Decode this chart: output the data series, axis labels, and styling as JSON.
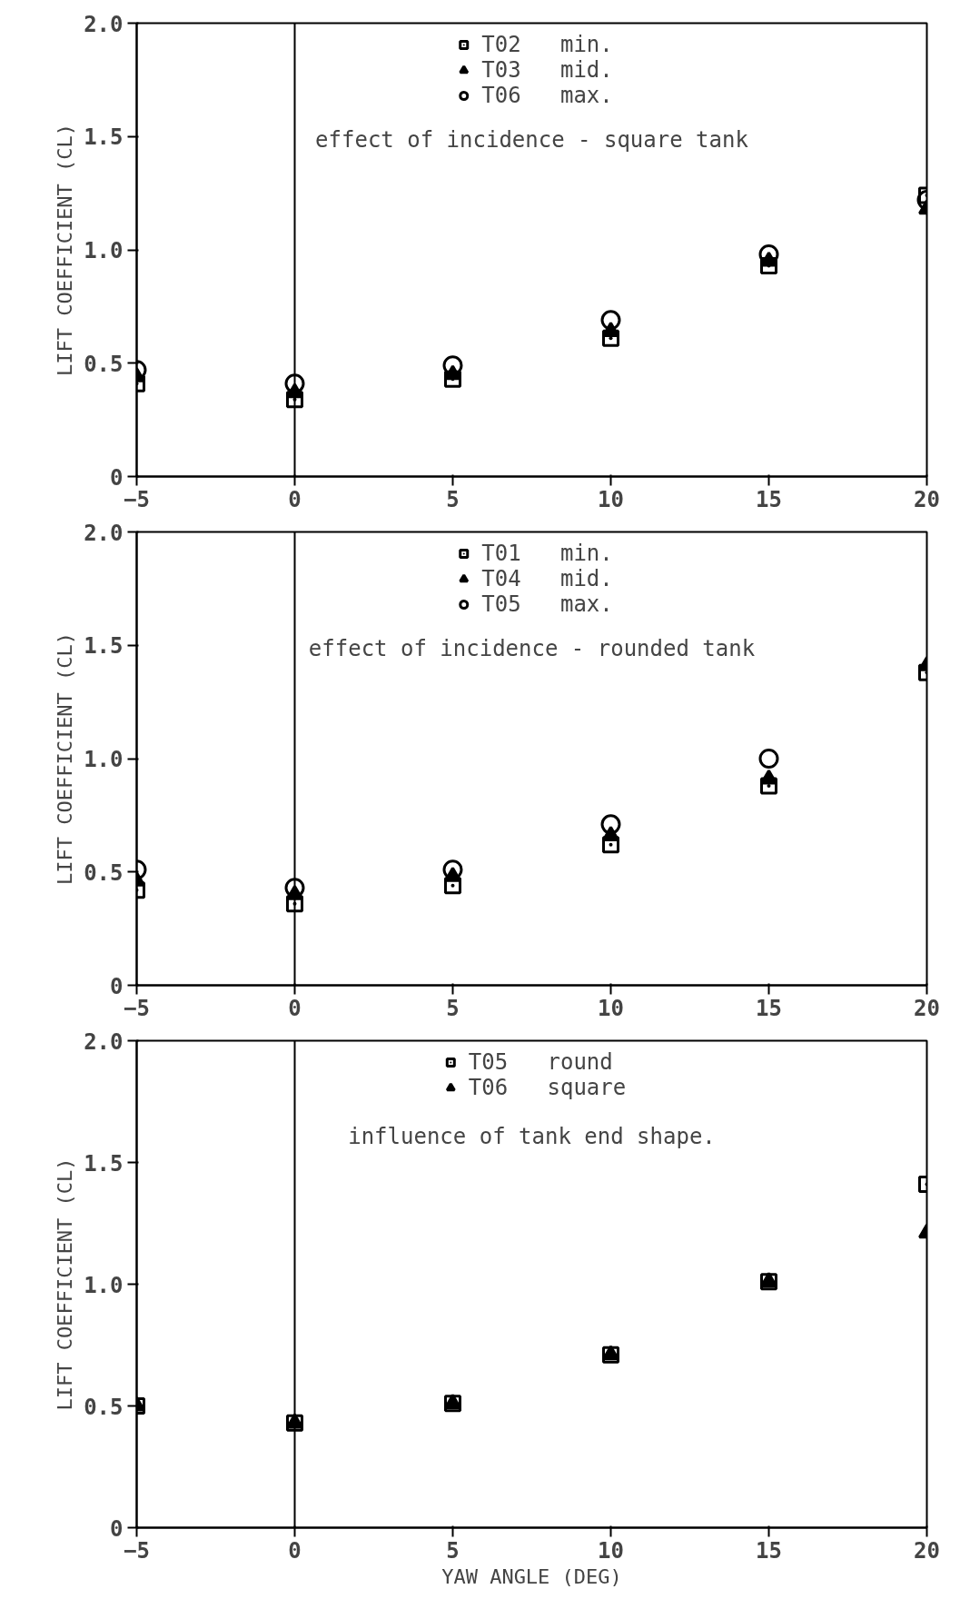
{
  "chart_data": [
    {
      "type": "scatter",
      "x": [
        -5,
        0,
        5,
        10,
        15,
        20
      ],
      "xlim": [
        -5,
        20
      ],
      "xticks": [
        -5,
        0,
        5,
        10,
        15,
        20
      ],
      "ylim": [
        0,
        2.0
      ],
      "yticks": [
        {
          "value": 0,
          "label": "0"
        },
        {
          "value": 0.5,
          "label": "0.5"
        },
        {
          "value": 1.0,
          "label": "1.0"
        },
        {
          "value": 1.5,
          "label": "1.5"
        },
        {
          "value": 2.0,
          "label": "2.0"
        }
      ],
      "ylabel": "LIFT COEFFICIENT (CL)",
      "grid": false,
      "legend": "top",
      "annotations": [
        "effect of incidence - square tank"
      ],
      "ref_lines": [
        {
          "axis": "x",
          "value": 0,
          "label": null
        }
      ],
      "series": [
        {
          "name": "T02   min.",
          "color": "#000000",
          "marker": "square",
          "values": [
            0.41,
            0.34,
            0.43,
            0.61,
            0.93,
            1.24
          ]
        },
        {
          "name": "T03   mid.",
          "color": "#000000",
          "marker": "triangle",
          "values": [
            0.44,
            0.37,
            0.45,
            0.64,
            0.95,
            1.18
          ]
        },
        {
          "name": "T06   max.",
          "color": "#000000",
          "marker": "circle",
          "values": [
            0.47,
            0.41,
            0.49,
            0.69,
            0.98,
            1.22
          ]
        }
      ]
    },
    {
      "type": "scatter",
      "x": [
        -5,
        0,
        5,
        10,
        15,
        20
      ],
      "xlim": [
        -5,
        20
      ],
      "xticks": [
        -5,
        0,
        5,
        10,
        15,
        20
      ],
      "ylim": [
        0,
        2.0
      ],
      "yticks": [
        {
          "value": 0,
          "label": "0"
        },
        {
          "value": 0.5,
          "label": "0.5"
        },
        {
          "value": 1.0,
          "label": "1.0"
        },
        {
          "value": 1.5,
          "label": "1.5"
        },
        {
          "value": 2.0,
          "label": "2.0"
        }
      ],
      "ylabel": "LIFT COEFFICIENT (CL)",
      "grid": false,
      "legend": "top",
      "annotations": [
        "effect of incidence - rounded tank"
      ],
      "ref_lines": [
        {
          "axis": "x",
          "value": 0,
          "label": null
        }
      ],
      "series": [
        {
          "name": "T01   min.",
          "color": "#000000",
          "marker": "square",
          "values": [
            0.42,
            0.36,
            0.44,
            0.62,
            0.88,
            1.38
          ]
        },
        {
          "name": "T04   mid.",
          "color": "#000000",
          "marker": "triangle",
          "values": [
            0.46,
            0.4,
            0.48,
            0.66,
            0.91,
            1.41
          ]
        },
        {
          "name": "T05   max.",
          "color": "#000000",
          "marker": "circle",
          "values": [
            0.51,
            0.43,
            0.51,
            0.71,
            1.0,
            null
          ]
        }
      ]
    },
    {
      "type": "scatter",
      "x": [
        -5,
        0,
        5,
        10,
        15,
        20
      ],
      "xlim": [
        -5,
        20
      ],
      "xticks": [
        -5,
        0,
        5,
        10,
        15,
        20
      ],
      "ylim": [
        0,
        2.0
      ],
      "yticks": [
        {
          "value": 0,
          "label": "0"
        },
        {
          "value": 0.5,
          "label": "0.5"
        },
        {
          "value": 1.0,
          "label": "1.0"
        },
        {
          "value": 1.5,
          "label": "1.5"
        },
        {
          "value": 2.0,
          "label": "2.0"
        }
      ],
      "ylabel": "LIFT COEFFICIENT (CL)",
      "xlabel": "YAW ANGLE (DEG)",
      "grid": false,
      "legend": "top",
      "annotations": [
        "influence of tank end shape."
      ],
      "ref_lines": [
        {
          "axis": "x",
          "value": 0,
          "label": null
        }
      ],
      "series": [
        {
          "name": "T05   round",
          "color": "#000000",
          "marker": "square",
          "values": [
            0.5,
            0.43,
            0.51,
            0.71,
            1.01,
            1.41
          ]
        },
        {
          "name": "T06   square",
          "color": "#000000",
          "marker": "triangle",
          "values": [
            0.5,
            0.43,
            0.51,
            0.71,
            1.01,
            1.21
          ]
        }
      ]
    }
  ]
}
